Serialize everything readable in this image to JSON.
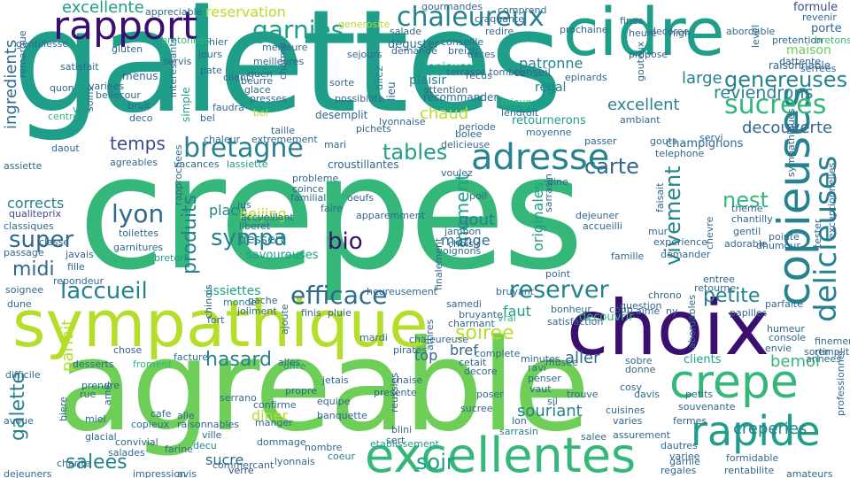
{
  "colors": {
    "c1": "#3b0f70",
    "c2": "#3e4a89",
    "c3": "#31688e",
    "c4": "#26828e",
    "c5": "#1f9e89",
    "c6": "#35b779",
    "c7": "#6ece58",
    "c8": "#b5de2b"
  },
  "words": [
    {
      "text": "crepes",
      "c": "c6"
    },
    {
      "text": "galettes",
      "c": "c5"
    },
    {
      "text": "agreable",
      "c": "c7"
    },
    {
      "text": "sympathique",
      "c": "c8"
    },
    {
      "text": "choix",
      "c": "c1"
    },
    {
      "text": "cidre",
      "c": "c5"
    },
    {
      "text": "excellentes",
      "c": "c6"
    },
    {
      "text": "crepe",
      "c": "c6"
    },
    {
      "text": "rapide",
      "c": "c5"
    },
    {
      "text": "rapport",
      "c": "c1"
    },
    {
      "text": "adresse",
      "c": "c4"
    },
    {
      "text": "copieuses",
      "c": "c4"
    },
    {
      "text": "chaleureux",
      "c": "c4"
    },
    {
      "text": "bretagne",
      "c": "c4"
    },
    {
      "text": "garnies",
      "c": "c5"
    },
    {
      "text": "delicieuses",
      "c": "c4"
    },
    {
      "text": "sucrees",
      "c": "c6"
    },
    {
      "text": "laccueil",
      "c": "c4"
    },
    {
      "text": "efficace",
      "c": "c3"
    },
    {
      "text": "reserver",
      "c": "c4"
    },
    {
      "text": "lyon",
      "c": "c3"
    },
    {
      "text": "sympa",
      "c": "c4"
    },
    {
      "text": "excellente",
      "c": "c5"
    },
    {
      "text": "tables",
      "c": "c5"
    },
    {
      "text": "genereuses",
      "c": "c4"
    },
    {
      "text": "soir",
      "c": "c5"
    },
    {
      "text": "nest",
      "c": "c6"
    },
    {
      "text": "vivement",
      "c": "c4"
    },
    {
      "text": "carte",
      "c": "c3"
    },
    {
      "text": "produits",
      "c": "c4"
    },
    {
      "text": "bio",
      "c": "c1"
    },
    {
      "text": "super",
      "c": "c3"
    },
    {
      "text": "salees",
      "c": "c4"
    },
    {
      "text": "galette",
      "c": "c4"
    },
    {
      "text": "temps",
      "c": "c2"
    },
    {
      "text": "reviendrons",
      "c": "c4"
    },
    {
      "text": "petite",
      "c": "c4"
    },
    {
      "text": "soiree",
      "c": "c8"
    },
    {
      "text": "souriant",
      "c": "c4"
    },
    {
      "text": "hasard",
      "c": "c4"
    },
    {
      "text": "moment",
      "c": "c5"
    },
    {
      "text": "decouverte",
      "c": "c3"
    },
    {
      "text": "excellent",
      "c": "c4"
    },
    {
      "text": "chaud",
      "c": "c8"
    },
    {
      "text": "large",
      "c": "c4"
    },
    {
      "text": "midi",
      "c": "c3"
    },
    {
      "text": "creperies",
      "c": "c4"
    },
    {
      "text": "bemol",
      "c": "c6"
    },
    {
      "text": "aller",
      "c": "c3"
    },
    {
      "text": "ingredients",
      "c": "c3"
    },
    {
      "text": "reservation",
      "c": "c8"
    },
    {
      "text": "patronne",
      "c": "c4"
    },
    {
      "text": "originales",
      "c": "c5"
    },
    {
      "text": "place",
      "c": "c4"
    },
    {
      "text": "corrects",
      "c": "c4"
    },
    {
      "text": "assiettes",
      "c": "c5"
    },
    {
      "text": "dessert",
      "c": "c4"
    },
    {
      "text": "gout",
      "c": "c4"
    },
    {
      "text": "beijing",
      "c": "c8"
    },
    {
      "text": "diner",
      "c": "c8"
    },
    {
      "text": "sucre",
      "c": "c3"
    },
    {
      "text": "mange",
      "c": "c3"
    },
    {
      "text": "bref",
      "c": "c3"
    },
    {
      "text": "top",
      "c": "c3"
    },
    {
      "text": "faut",
      "c": "c5"
    },
    {
      "text": "parfait",
      "c": "c8"
    },
    {
      "text": "maison",
      "c": "c7"
    },
    {
      "text": "plaisir",
      "c": "c4"
    },
    {
      "text": "regal",
      "c": "c4"
    },
    {
      "text": "copieuse",
      "c": "c5"
    },
    {
      "text": "decouvrir",
      "c": "c6"
    },
    {
      "text": "champignons",
      "c": "c3"
    },
    {
      "text": "savoureuses",
      "c": "c5"
    },
    {
      "text": "deguster",
      "c": "c3"
    },
    {
      "text": "retournerons",
      "c": "c5"
    },
    {
      "text": "raisonnable",
      "c": "c3"
    },
    {
      "text": "formule",
      "c": "c2"
    },
    {
      "text": "porte",
      "c": "c3"
    },
    {
      "text": "clients",
      "c": "c5"
    },
    {
      "text": "conseil",
      "c": "c3"
    },
    {
      "text": "recommander",
      "c": "c3"
    },
    {
      "text": "croustillantes",
      "c": "c3"
    },
    {
      "text": "generosite",
      "c": "c8"
    },
    {
      "text": "desemplit",
      "c": "c3"
    },
    {
      "text": "lieu",
      "c": "c3"
    },
    {
      "text": "allez",
      "c": "c4"
    },
    {
      "text": "menus",
      "c": "c3"
    },
    {
      "text": "simple",
      "c": "c5"
    },
    {
      "text": "jours",
      "c": "c3"
    },
    {
      "text": "pate",
      "c": "c3"
    },
    {
      "text": "vite",
      "c": "c5"
    },
    {
      "text": "quen",
      "c": "c3"
    },
    {
      "text": "bol",
      "c": "c8"
    },
    {
      "text": "classiques",
      "c": "c3"
    },
    {
      "text": "toilettes",
      "c": "c3"
    },
    {
      "text": "garnitures",
      "c": "c3"
    },
    {
      "text": "breton",
      "c": "c5"
    },
    {
      "text": "qualiteprix",
      "c": "c2"
    },
    {
      "text": "lassiette",
      "c": "c5"
    },
    {
      "text": "soignee",
      "c": "c3"
    },
    {
      "text": "dune",
      "c": "c3"
    },
    {
      "text": "monde",
      "c": "c4"
    },
    {
      "text": "desserts",
      "c": "c3"
    },
    {
      "text": "froment",
      "c": "c6"
    },
    {
      "text": "difficile",
      "c": "c3"
    },
    {
      "text": "rue",
      "c": "c3"
    },
    {
      "text": "manger",
      "c": "c3"
    },
    {
      "text": "banquette",
      "c": "c3"
    },
    {
      "text": "etablissement",
      "c": "c5"
    },
    {
      "text": "sarrasin",
      "c": "c4"
    },
    {
      "text": "verre",
      "c": "c2"
    },
    {
      "text": "copieux",
      "c": "c3"
    },
    {
      "text": "decu",
      "c": "c4"
    },
    {
      "text": "coeur",
      "c": "c4"
    },
    {
      "text": "salee",
      "c": "c3"
    },
    {
      "text": "regales",
      "c": "c3"
    },
    {
      "text": "variee",
      "c": "c3"
    },
    {
      "text": "sortir",
      "c": "c3"
    },
    {
      "text": "annees",
      "c": "c3"
    },
    {
      "text": "dommage",
      "c": "c3"
    },
    {
      "text": "confirme",
      "c": "c3"
    },
    {
      "text": "propre",
      "c": "c3"
    },
    {
      "text": "sucree",
      "c": "c3"
    },
    {
      "text": "presente",
      "c": "c3"
    },
    {
      "text": "decore",
      "c": "c3"
    },
    {
      "text": "cosy",
      "c": "c3"
    },
    {
      "text": "lon",
      "c": "c3"
    },
    {
      "text": "vrai",
      "c": "c6"
    },
    {
      "text": "bruyant",
      "c": "c3"
    },
    {
      "text": "chaise",
      "c": "c3"
    },
    {
      "text": "offre",
      "c": "c5"
    },
    {
      "text": "facture",
      "c": "c3"
    },
    {
      "text": "chose",
      "c": "c3"
    },
    {
      "text": "cetait",
      "c": "c3"
    },
    {
      "text": "alles",
      "c": "c3"
    },
    {
      "text": "jetais",
      "c": "c3"
    },
    {
      "text": "gentillesse",
      "c": "c3"
    },
    {
      "text": "bretonnes",
      "c": "c6"
    },
    {
      "text": "gluten",
      "c": "c3"
    },
    {
      "text": "appreciable",
      "c": "c3"
    },
    {
      "text": "conseille",
      "c": "c3"
    },
    {
      "text": "salade",
      "c": "c3"
    },
    {
      "text": "redire",
      "c": "c3"
    },
    {
      "text": "prochaine",
      "c": "c3"
    },
    {
      "text": "decoree",
      "c": "c3"
    },
    {
      "text": "abordable",
      "c": "c3"
    },
    {
      "text": "revenir",
      "c": "c3"
    },
    {
      "text": "bretons",
      "c": "c6"
    },
    {
      "text": "craquante",
      "c": "c3"
    },
    {
      "text": "comprend",
      "c": "c3"
    },
    {
      "text": "fines",
      "c": "c3"
    },
    {
      "text": "heure",
      "c": "c3"
    },
    {
      "text": "propose",
      "c": "c3"
    },
    {
      "text": "epinards",
      "c": "c3"
    },
    {
      "text": "meilleure",
      "c": "c3"
    },
    {
      "text": "demande",
      "c": "c3"
    },
    {
      "text": "sejours",
      "c": "c3"
    },
    {
      "text": "exces",
      "c": "c3"
    },
    {
      "text": "terrasse tombes",
      "c": "c3"
    },
    {
      "text": "attention",
      "c": "c3"
    },
    {
      "text": "mieux",
      "c": "c6"
    },
    {
      "text": "lendroit",
      "c": "c3"
    },
    {
      "text": "faudra",
      "c": "c3"
    },
    {
      "text": "presses",
      "c": "c3"
    },
    {
      "text": "glace",
      "c": "c3"
    },
    {
      "text": "beurre",
      "c": "c3"
    },
    {
      "text": "servis",
      "c": "c3"
    },
    {
      "text": "hier",
      "c": "c3"
    },
    {
      "text": "satisfait",
      "c": "c3"
    },
    {
      "text": "remarque",
      "c": "c3"
    },
    {
      "text": "quon",
      "c": "c3"
    },
    {
      "text": "variees",
      "c": "c3"
    },
    {
      "text": "bellecour",
      "c": "c3"
    },
    {
      "text": "bruit",
      "c": "c3"
    },
    {
      "text": "deco",
      "c": "c3"
    },
    {
      "text": "soins",
      "c": "c3"
    },
    {
      "text": "centre",
      "c": "c6"
    },
    {
      "text": "chaleur",
      "c": "c3"
    },
    {
      "text": "extremement",
      "c": "c3"
    },
    {
      "text": "pichets",
      "c": "c3"
    },
    {
      "text": "delicieuse",
      "c": "c3"
    },
    {
      "text": "passer",
      "c": "c3"
    },
    {
      "text": "gouts",
      "c": "c3"
    },
    {
      "text": "servi",
      "c": "c3"
    },
    {
      "text": "telephone",
      "c": "c3"
    },
    {
      "text": "vacances",
      "c": "c3"
    },
    {
      "text": "agreables",
      "c": "c3"
    },
    {
      "text": "interessants",
      "c": "c3"
    },
    {
      "text": "rapprochees",
      "c": "c3"
    },
    {
      "text": "possibilite",
      "c": "c3"
    },
    {
      "text": "lyonnaise",
      "c": "c3"
    },
    {
      "text": "probleme",
      "c": "c3"
    },
    {
      "text": "coince",
      "c": "c3"
    },
    {
      "text": "familial",
      "c": "c3"
    },
    {
      "text": "jus",
      "c": "c3"
    },
    {
      "text": "oeufs",
      "c": "c3"
    },
    {
      "text": "faire",
      "c": "c3"
    },
    {
      "text": "dejeuner",
      "c": "c3"
    },
    {
      "text": "accueilli",
      "c": "c3"
    },
    {
      "text": "jambon",
      "c": "c3"
    },
    {
      "text": "choisir",
      "c": "c3"
    },
    {
      "text": "oignons",
      "c": "c3"
    },
    {
      "text": "mardi",
      "c": "c3"
    },
    {
      "text": "mur",
      "c": "c3"
    },
    {
      "text": "experience",
      "c": "c3"
    },
    {
      "text": "demander",
      "c": "c3"
    },
    {
      "text": "famille",
      "c": "c3"
    },
    {
      "text": "chevre",
      "c": "c3"
    },
    {
      "text": "gentil",
      "c": "c3"
    },
    {
      "text": "chantilly",
      "c": "c3"
    },
    {
      "text": "sympathiques",
      "c": "c3"
    },
    {
      "text": "tester",
      "c": "c3"
    },
    {
      "text": "exceptionnelles",
      "c": "c3"
    },
    {
      "text": "faisait",
      "c": "c3"
    },
    {
      "text": "point",
      "c": "c3"
    },
    {
      "text": "question",
      "c": "c3"
    },
    {
      "text": "musee",
      "c": "c3"
    },
    {
      "text": "chrono",
      "c": "c3"
    },
    {
      "text": "coup",
      "c": "c3"
    },
    {
      "text": "samedi",
      "c": "c3"
    },
    {
      "text": "bruyante",
      "c": "c3"
    },
    {
      "text": "charmant",
      "c": "c3"
    },
    {
      "text": "heureusement",
      "c": "c3"
    },
    {
      "text": "finalement",
      "c": "c3"
    },
    {
      "text": "repondeur",
      "c": "c3"
    },
    {
      "text": "fille",
      "c": "c3"
    },
    {
      "text": "classe",
      "c": "c3"
    },
    {
      "text": "javais",
      "c": "c3"
    },
    {
      "text": "passage",
      "c": "c3"
    },
    {
      "text": "joliment",
      "c": "c3"
    },
    {
      "text": "fort",
      "c": "c3"
    },
    {
      "text": "chinois",
      "c": "c3"
    },
    {
      "text": "finis",
      "c": "c3"
    },
    {
      "text": "pluie",
      "c": "c3"
    },
    {
      "text": "pirates",
      "c": "c3"
    },
    {
      "text": "attires",
      "c": "c3"
    },
    {
      "text": "complete",
      "c": "c3"
    },
    {
      "text": "reussies",
      "c": "c3"
    },
    {
      "text": "equipe",
      "c": "c3"
    },
    {
      "text": "poser",
      "c": "c3"
    },
    {
      "text": "vaut",
      "c": "c3"
    },
    {
      "text": "penser",
      "c": "c3"
    },
    {
      "text": "sil",
      "c": "c3"
    },
    {
      "text": "trouve",
      "c": "c3"
    },
    {
      "text": "cuisines",
      "c": "c3"
    },
    {
      "text": "varies",
      "c": "c3"
    },
    {
      "text": "davis",
      "c": "c3"
    },
    {
      "text": "sobre",
      "c": "c3"
    },
    {
      "text": "donne",
      "c": "c3"
    },
    {
      "text": "fermes",
      "c": "c3"
    },
    {
      "text": "souvenante",
      "c": "c3"
    },
    {
      "text": "amis",
      "c": "c3"
    },
    {
      "text": "serrano",
      "c": "c3"
    },
    {
      "text": "raisonnables",
      "c": "c3"
    },
    {
      "text": "glacial",
      "c": "c3"
    },
    {
      "text": "miel",
      "c": "c3"
    },
    {
      "text": "biere",
      "c": "c3"
    },
    {
      "text": "cafe",
      "c": "c3"
    },
    {
      "text": "farine",
      "c": "c3"
    },
    {
      "text": "ville",
      "c": "c3"
    },
    {
      "text": "lyonnais",
      "c": "c3"
    },
    {
      "text": "nombre",
      "c": "c3"
    },
    {
      "text": "blini",
      "c": "c3"
    },
    {
      "text": "sert",
      "c": "c3"
    },
    {
      "text": "assurement",
      "c": "c3"
    },
    {
      "text": "dautres",
      "c": "c3"
    },
    {
      "text": "garnie",
      "c": "c3"
    },
    {
      "text": "formidable",
      "c": "c3"
    },
    {
      "text": "rentabilite",
      "c": "c3"
    },
    {
      "text": "amateurs",
      "c": "c3"
    },
    {
      "text": "impression",
      "c": "c3"
    },
    {
      "text": "avis",
      "c": "c3"
    },
    {
      "text": "commercant",
      "c": "c3"
    },
    {
      "text": "dejeuners",
      "c": "c3"
    },
    {
      "text": "charite",
      "c": "c3"
    },
    {
      "text": "salades",
      "c": "c3"
    },
    {
      "text": "convivial",
      "c": "c3"
    },
    {
      "text": "avoue",
      "c": "c3"
    },
    {
      "text": "console",
      "c": "c3"
    },
    {
      "text": "envie",
      "c": "c3"
    },
    {
      "text": "humeur",
      "c": "c3"
    },
    {
      "text": "finement",
      "c": "c3"
    },
    {
      "text": "remplit",
      "c": "c3"
    },
    {
      "text": "professionnel",
      "c": "c3"
    },
    {
      "text": "abordables",
      "c": "c3"
    },
    {
      "text": "petits",
      "c": "c3"
    },
    {
      "text": "papilles",
      "c": "c3"
    },
    {
      "text": "parfaite",
      "c": "c3"
    },
    {
      "text": "retourne",
      "c": "c3"
    },
    {
      "text": "entree",
      "c": "c3"
    },
    {
      "text": "bonheur",
      "c": "c3"
    },
    {
      "text": "satisfaction",
      "c": "c3"
    },
    {
      "text": "aime",
      "c": "c3"
    },
    {
      "text": "ny",
      "c": "c3"
    },
    {
      "text": "serrees",
      "c": "c3"
    },
    {
      "text": "gourmandes",
      "c": "c3"
    },
    {
      "text": "recus",
      "c": "c3"
    },
    {
      "text": "periode",
      "c": "c3"
    },
    {
      "text": "bolee",
      "c": "c3"
    },
    {
      "text": "breizh",
      "c": "c3"
    },
    {
      "text": "moyenne",
      "c": "c3"
    },
    {
      "text": "ambiant",
      "c": "c3"
    },
    {
      "text": "high",
      "c": "c3"
    },
    {
      "text": "level",
      "c": "c3"
    },
    {
      "text": "gouteux",
      "c": "c3"
    },
    {
      "text": "pretention",
      "c": "c3"
    },
    {
      "text": "dattente",
      "c": "c3"
    },
    {
      "text": "sorte",
      "c": "c3"
    },
    {
      "text": "meilleures",
      "c": "c3"
    },
    {
      "text": "charme",
      "c": "c3"
    },
    {
      "text": "mari",
      "c": "c3"
    },
    {
      "text": "daout",
      "c": "c3"
    },
    {
      "text": "client",
      "c": "c3"
    },
    {
      "text": "bel",
      "c": "c3"
    },
    {
      "text": "taille",
      "c": "c3"
    },
    {
      "text": "dhumour",
      "c": "c3"
    },
    {
      "text": "assiette",
      "c": "c3"
    },
    {
      "text": "apparemment",
      "c": "c3"
    },
    {
      "text": "liberet",
      "c": "c3"
    },
    {
      "text": "accueillant",
      "c": "c3"
    },
    {
      "text": "poil",
      "c": "c3"
    },
    {
      "text": "voulez",
      "c": "c3"
    },
    {
      "text": "dine",
      "c": "c3"
    },
    {
      "text": "sarrasin",
      "c": "c3"
    },
    {
      "text": "theme",
      "c": "c3"
    },
    {
      "text": "adorable",
      "c": "c3"
    },
    {
      "text": "pointe",
      "c": "c3"
    },
    {
      "text": "gache",
      "c": "c3"
    },
    {
      "text": "ajoute",
      "c": "c3"
    },
    {
      "text": "chaleureuse",
      "c": "c3"
    },
    {
      "text": "minutes",
      "c": "c3"
    },
    {
      "text": "ravi",
      "c": "c3"
    },
    {
      "text": "prendre",
      "c": "c3"
    },
    {
      "text": "alle",
      "c": "c3"
    },
    {
      "text": "boire",
      "c": "c3"
    }
  ]
}
